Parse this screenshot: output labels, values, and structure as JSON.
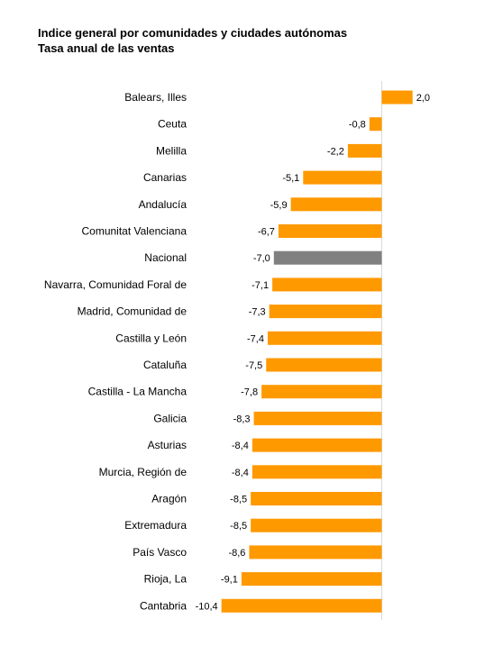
{
  "chart_data": {
    "type": "bar",
    "orientation": "horizontal",
    "title": "Indice general por comunidades y ciudades autónomas",
    "subtitle": "Tasa anual de las ventas",
    "categories": [
      "Balears, Illes",
      "Ceuta",
      "Melilla",
      "Canarias",
      "Andalucía",
      "Comunitat Valenciana",
      "Nacional",
      "Navarra, Comunidad Foral de",
      "Madrid, Comunidad de",
      "Castilla y León",
      "Cataluña",
      "Castilla - La Mancha",
      "Galicia",
      "Asturias",
      "Murcia, Región de",
      "Aragón",
      "Extremadura",
      "País Vasco",
      "Rioja, La",
      "Cantabria"
    ],
    "values": [
      2.0,
      -0.8,
      -2.2,
      -5.1,
      -5.9,
      -6.7,
      -7.0,
      -7.1,
      -7.3,
      -7.4,
      -7.5,
      -7.8,
      -8.3,
      -8.4,
      -8.4,
      -8.5,
      -8.5,
      -8.6,
      -9.1,
      -10.4
    ],
    "value_labels": [
      "2,0",
      "-0,8",
      "-2,2",
      "-5,1",
      "-5,9",
      "-6,7",
      "-7,0",
      "-7,1",
      "-7,3",
      "-7,4",
      "-7,5",
      "-7,8",
      "-8,3",
      "-8,4",
      "-8,4",
      "-8,5",
      "-8,5",
      "-8,6",
      "-9,1",
      "-10,4"
    ],
    "highlight_category": "Nacional",
    "colors": {
      "bar": "#ff9900",
      "highlight": "#808080",
      "axis": "#d9d9d9"
    },
    "grid": false,
    "legend": "none"
  }
}
